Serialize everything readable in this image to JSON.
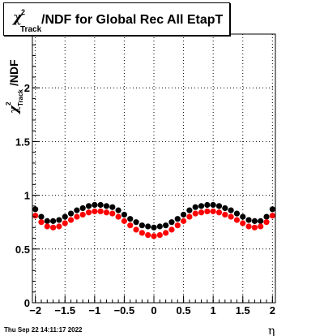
{
  "title": {
    "symbol": "χ",
    "sup": "2",
    "sub": "Track",
    "text": "/NDF for Global Rec All EtapT"
  },
  "ylabel": {
    "symbol": "χ",
    "sup": "2",
    "sub": "Track",
    "text": "/NDF"
  },
  "xlabel": "η",
  "datestamp": "Thu Sep 22 14:11:17 2022",
  "colors": {
    "series1": "#000000",
    "series2": "#ff0000",
    "grid": "#000000"
  },
  "chart_data": {
    "type": "scatter",
    "title": "χ²_Track/NDF for Global Rec All EtapT",
    "xlabel": "η",
    "ylabel": "χ²_Track/NDF",
    "xlim": [
      -2.05,
      2.05
    ],
    "ylim": [
      0,
      2.5
    ],
    "xticks": [
      -2,
      -1.5,
      -1,
      -0.5,
      0,
      0.5,
      1,
      1.5,
      2
    ],
    "xtick_labels": [
      "−2",
      "−1.5",
      "−1",
      "−0.5",
      "0",
      "0.5",
      "1",
      "1.5",
      "2"
    ],
    "yticks": [
      0,
      0.5,
      1,
      1.5,
      2
    ],
    "ytick_labels": [
      "0",
      "0.5",
      "1",
      "1.5",
      "2"
    ],
    "grid": true,
    "series": [
      {
        "color": "#000000",
        "x": [
          -2.0,
          -1.9,
          -1.8,
          -1.7,
          -1.6,
          -1.5,
          -1.4,
          -1.3,
          -1.2,
          -1.1,
          -1.0,
          -0.9,
          -0.8,
          -0.7,
          -0.6,
          -0.5,
          -0.4,
          -0.3,
          -0.2,
          -0.1,
          0.0,
          0.1,
          0.2,
          0.3,
          0.4,
          0.5,
          0.6,
          0.7,
          0.8,
          0.9,
          1.0,
          1.1,
          1.2,
          1.3,
          1.4,
          1.5,
          1.6,
          1.7,
          1.8,
          1.9,
          2.0
        ],
        "y": [
          0.87,
          0.8,
          0.76,
          0.76,
          0.77,
          0.8,
          0.83,
          0.86,
          0.88,
          0.9,
          0.91,
          0.91,
          0.9,
          0.89,
          0.86,
          0.82,
          0.78,
          0.75,
          0.72,
          0.71,
          0.7,
          0.71,
          0.72,
          0.75,
          0.78,
          0.82,
          0.86,
          0.89,
          0.9,
          0.91,
          0.91,
          0.9,
          0.88,
          0.86,
          0.83,
          0.8,
          0.77,
          0.76,
          0.76,
          0.8,
          0.87
        ]
      },
      {
        "color": "#ff0000",
        "x": [
          -2.0,
          -1.9,
          -1.8,
          -1.7,
          -1.6,
          -1.5,
          -1.4,
          -1.3,
          -1.2,
          -1.1,
          -1.0,
          -0.9,
          -0.8,
          -0.7,
          -0.6,
          -0.5,
          -0.4,
          -0.3,
          -0.2,
          -0.1,
          0.0,
          0.1,
          0.2,
          0.3,
          0.4,
          0.5,
          0.6,
          0.7,
          0.8,
          0.9,
          1.0,
          1.1,
          1.2,
          1.3,
          1.4,
          1.5,
          1.6,
          1.7,
          1.8,
          1.9,
          2.0
        ],
        "y": [
          0.81,
          0.75,
          0.71,
          0.7,
          0.71,
          0.74,
          0.77,
          0.8,
          0.82,
          0.84,
          0.85,
          0.85,
          0.84,
          0.83,
          0.8,
          0.76,
          0.72,
          0.68,
          0.65,
          0.63,
          0.62,
          0.63,
          0.65,
          0.68,
          0.72,
          0.76,
          0.8,
          0.83,
          0.84,
          0.85,
          0.85,
          0.84,
          0.82,
          0.8,
          0.77,
          0.74,
          0.71,
          0.7,
          0.71,
          0.75,
          0.81
        ]
      }
    ]
  }
}
